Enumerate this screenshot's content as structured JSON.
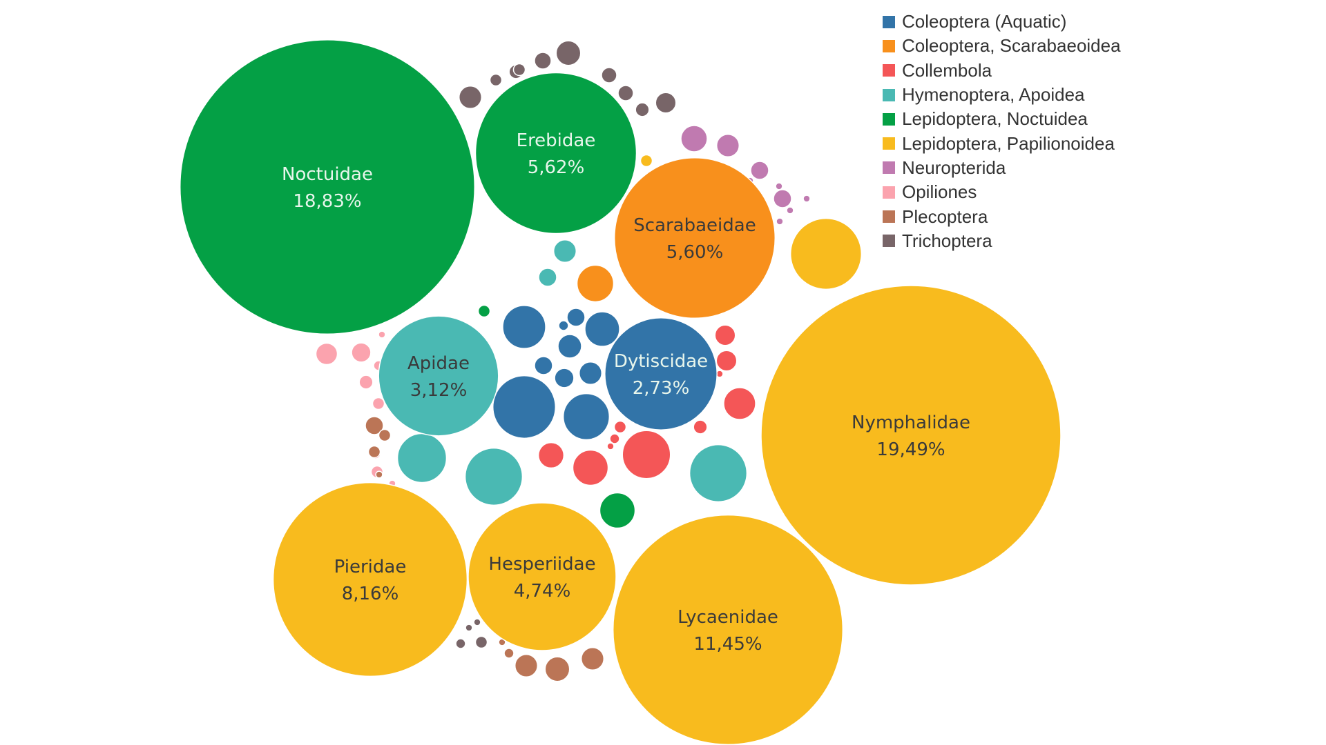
{
  "chart_data": {
    "type": "packed-bubble",
    "title": "",
    "category_colors": {
      "Coleoptera (Aquatic)": "#3274A8",
      "Coleoptera, Scarabaeoidea": "#F8901C",
      "Collembola": "#F45657",
      "Hymenoptera, Apoidea": "#4AB9B3",
      "Lepidoptera, Noctuidea": "#04A045",
      "Lepidoptera, Papilionoidea": "#F8BB1E",
      "Neuropterida": "#C07AB0",
      "Opiliones": "#FBA3AE",
      "Plecoptera": "#BB7556",
      "Trichoptera": "#786568"
    },
    "legend_items": [
      "Coleoptera (Aquatic)",
      "Coleoptera, Scarabaeoidea",
      "Collembola",
      "Hymenoptera, Apoidea",
      "Lepidoptera, Noctuidea",
      "Lepidoptera, Papilionoidea",
      "Neuropterida",
      "Opiliones",
      "Plecoptera",
      "Trichoptera"
    ],
    "labeled_bubbles": [
      {
        "name": "Nymphalidae",
        "value_label": "19,49%",
        "value": 19.49,
        "group": "Lepidoptera, Papilionoidea"
      },
      {
        "name": "Noctuidae",
        "value_label": "18,83%",
        "value": 18.83,
        "group": "Lepidoptera, Noctuidea"
      },
      {
        "name": "Lycaenidae",
        "value_label": "11,45%",
        "value": 11.45,
        "group": "Lepidoptera, Papilionoidea"
      },
      {
        "name": "Pieridae",
        "value_label": "8,16%",
        "value": 8.16,
        "group": "Lepidoptera, Papilionoidea"
      },
      {
        "name": "Erebidae",
        "value_label": "5,62%",
        "value": 5.62,
        "group": "Lepidoptera, Noctuidea"
      },
      {
        "name": "Scarabaeidae",
        "value_label": "5,60%",
        "value": 5.6,
        "group": "Coleoptera, Scarabaeoidea"
      },
      {
        "name": "Hesperiidae",
        "value_label": "4,74%",
        "value": 4.74,
        "group": "Lepidoptera, Papilionoidea"
      },
      {
        "name": "Apidae",
        "value_label": "3,12%",
        "value": 3.12,
        "group": "Hymenoptera, Apoidea"
      },
      {
        "name": "Dytiscidae",
        "value_label": "2,73%",
        "value": 2.73,
        "group": "Coleoptera (Aquatic)"
      }
    ],
    "unlabeled_bubble_values": [
      {
        "group": "Lepidoptera, Papilionoidea",
        "values": [
          1.09,
          0.03
        ]
      },
      {
        "group": "Coleoptera, Scarabaeoidea",
        "values": [
          0.29
        ]
      },
      {
        "group": "Lepidoptera, Noctuidea",
        "values": [
          0.27,
          0.03
        ]
      },
      {
        "group": "Hymenoptera, Apoidea",
        "values": [
          0.71,
          0.71,
          0.52,
          0.07,
          0.11
        ]
      },
      {
        "group": "Coleoptera (Aquatic)",
        "values": [
          0.85,
          0.46,
          0.4,
          0.26,
          0.12,
          0.11,
          0.08,
          0.07,
          0.07,
          0.02
        ]
      },
      {
        "group": "Collembola",
        "values": [
          0.5,
          0.27,
          0.22,
          0.14,
          0.09,
          0.09,
          0.04,
          0.03,
          0.02,
          0.02,
          0.01,
          0.01,
          0.01
        ]
      },
      {
        "group": "Neuropterida",
        "values": [
          0.15,
          0.11,
          0.07,
          0.07,
          0.01,
          0.01,
          0.01,
          0.01,
          0.01
        ]
      },
      {
        "group": "Opiliones",
        "values": [
          0.1,
          0.08,
          0.04,
          0.03,
          0.03,
          0.02,
          0.02,
          0.01,
          0.01
        ]
      },
      {
        "group": "Plecoptera",
        "values": [
          0.13,
          0.11,
          0.11,
          0.07,
          0.03,
          0.03,
          0.02,
          0.01,
          0.01
        ]
      },
      {
        "group": "Trichoptera",
        "values": [
          0.13,
          0.11,
          0.09,
          0.06,
          0.05,
          0.05,
          0.04,
          0.04,
          0.03,
          0.03,
          0.03,
          0.02,
          0.01,
          0.01,
          0.01,
          0.01
        ]
      }
    ]
  }
}
